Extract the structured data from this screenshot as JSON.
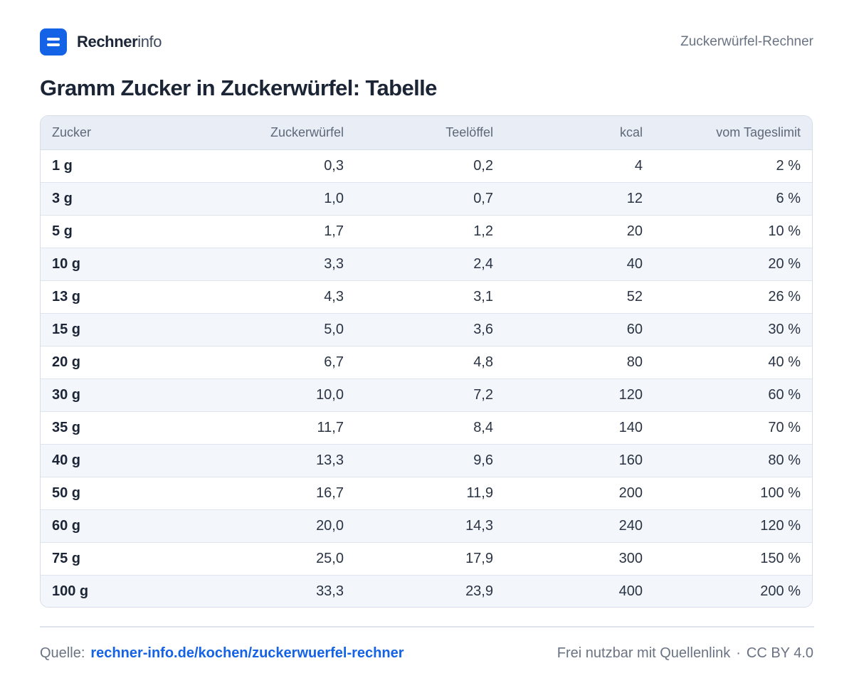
{
  "header": {
    "brand_strong": "Rechner",
    "brand_light": "info",
    "right_label": "Zuckerwürfel-Rechner"
  },
  "title": "Gramm Zucker in Zuckerwürfel: Tabelle",
  "table": {
    "columns": [
      "Zucker",
      "Zuckerwürfel",
      "Teelöffel",
      "kcal",
      "vom Tageslimit"
    ],
    "rows": [
      [
        "1 g",
        "0,3",
        "0,2",
        "4",
        "2 %"
      ],
      [
        "3 g",
        "1,0",
        "0,7",
        "12",
        "6 %"
      ],
      [
        "5 g",
        "1,7",
        "1,2",
        "20",
        "10 %"
      ],
      [
        "10 g",
        "3,3",
        "2,4",
        "40",
        "20 %"
      ],
      [
        "13 g",
        "4,3",
        "3,1",
        "52",
        "26 %"
      ],
      [
        "15 g",
        "5,0",
        "3,6",
        "60",
        "30 %"
      ],
      [
        "20 g",
        "6,7",
        "4,8",
        "80",
        "40 %"
      ],
      [
        "30 g",
        "10,0",
        "7,2",
        "120",
        "60 %"
      ],
      [
        "35 g",
        "11,7",
        "8,4",
        "140",
        "70 %"
      ],
      [
        "40 g",
        "13,3",
        "9,6",
        "160",
        "80 %"
      ],
      [
        "50 g",
        "16,7",
        "11,9",
        "200",
        "100 %"
      ],
      [
        "60 g",
        "20,0",
        "14,3",
        "240",
        "120 %"
      ],
      [
        "75 g",
        "25,0",
        "17,9",
        "300",
        "150 %"
      ],
      [
        "100 g",
        "33,3",
        "23,9",
        "400",
        "200 %"
      ]
    ]
  },
  "footer": {
    "source_label": "Quelle:",
    "source_link": "rechner-info.de/kochen/zuckerwuerfel-rechner",
    "license_text": "Frei nutzbar mit Quellenlink",
    "separator": "·",
    "license": "CC BY 4.0"
  },
  "colors": {
    "accent": "#1463e6",
    "header_row_bg": "#e9eef6",
    "zebra_row_bg": "#f3f6fb"
  },
  "icons": {
    "logo": "rechnerinfo-logo-icon"
  }
}
